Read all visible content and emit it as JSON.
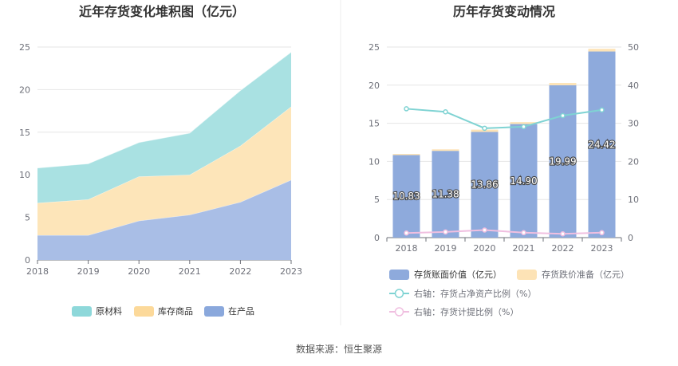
{
  "source_text": "数据来源：恒生聚源",
  "chart_data": [
    {
      "type": "area",
      "title": "近年存货变化堆积图（亿元）",
      "categories": [
        "2018",
        "2019",
        "2020",
        "2021",
        "2022",
        "2023"
      ],
      "ylim": [
        0,
        25
      ],
      "yticks": [
        0,
        5,
        10,
        15,
        20,
        25
      ],
      "stacked": true,
      "grid": true,
      "legend_position": "bottom",
      "series": [
        {
          "name": "在产品",
          "color": "#a9bee6",
          "legend_color": "#8aa8dc",
          "values": [
            2.9,
            2.9,
            4.6,
            5.3,
            6.8,
            9.4
          ]
        },
        {
          "name": "库存商品",
          "color": "#fde5b9",
          "legend_color": "#fcd99a",
          "values": [
            3.8,
            4.2,
            5.2,
            4.7,
            6.6,
            8.6
          ]
        },
        {
          "name": "原材料",
          "color": "#a9e1e2",
          "legend_color": "#8ed8da",
          "values": [
            4.1,
            4.2,
            4.0,
            4.9,
            6.5,
            6.4
          ]
        }
      ],
      "legend_order": [
        "原材料",
        "库存商品",
        "在产品"
      ]
    },
    {
      "type": "bar",
      "title": "历年存货变动情况",
      "categories": [
        "2018",
        "2019",
        "2020",
        "2021",
        "2022",
        "2023"
      ],
      "ylim": [
        0,
        25
      ],
      "yticks": [
        0,
        5,
        10,
        15,
        20,
        25
      ],
      "y2lim": [
        0,
        50
      ],
      "y2ticks": [
        0,
        10,
        20,
        30,
        40,
        50
      ],
      "grid": true,
      "legend_position": "bottom",
      "series": [
        {
          "name": "存货账面价值（亿元）",
          "type": "bar",
          "color": "#8eaadc",
          "values": [
            10.83,
            11.38,
            13.86,
            14.9,
            19.99,
            24.42
          ],
          "labels": [
            "10.83",
            "11.38",
            "13.86",
            "14.90",
            "19.99",
            "24.42"
          ]
        },
        {
          "name": "存货跌价准备（亿元）",
          "type": "bar",
          "color": "#fde3b6",
          "values": [
            0.15,
            0.2,
            0.3,
            0.25,
            0.3,
            0.35
          ]
        },
        {
          "name": "右轴：存货占净资产比例（%）",
          "type": "line",
          "axis": "right",
          "color": "#7fd3d3",
          "values": [
            33.8,
            33.0,
            28.7,
            29.1,
            32.0,
            33.5
          ]
        },
        {
          "name": "右轴：存货计提比例（%）",
          "type": "line",
          "axis": "right",
          "color": "#f0bfe0",
          "values": [
            1.2,
            1.5,
            2.0,
            1.3,
            1.0,
            1.3
          ]
        }
      ]
    }
  ]
}
